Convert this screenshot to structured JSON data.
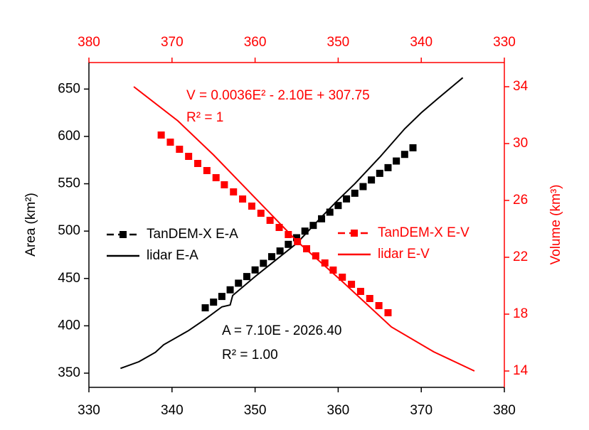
{
  "chart_data": {
    "type": "line",
    "xlim": [
      330,
      380
    ],
    "xticks": [
      330,
      340,
      350,
      360,
      370,
      380
    ],
    "x2lim": [
      380,
      330
    ],
    "x2ticks": [
      380,
      370,
      360,
      350,
      340,
      330
    ],
    "ylim": [
      335,
      678
    ],
    "yticks": [
      350,
      400,
      450,
      500,
      550,
      600,
      650
    ],
    "y2lim": [
      12.85,
      35.7
    ],
    "y2ticks": [
      14,
      18,
      22,
      26,
      30,
      34
    ],
    "ylabel": "Area (km²)",
    "y2label": "Volume (km³)",
    "annotations": [
      {
        "text": "V = 0.0036E² - 2.10E + 307.75",
        "color": "#ff0000"
      },
      {
        "text": "R² = 1",
        "color": "#ff0000"
      },
      {
        "text": "A = 7.10E - 2026.40",
        "color": "#000000"
      },
      {
        "text": "R² = 1.00",
        "color": "#000000"
      }
    ],
    "series": [
      {
        "name": "TanDEM-X E-A",
        "color": "#000000",
        "marker": "square",
        "dashed": true,
        "axis": "y",
        "x": [
          344,
          345,
          346,
          347,
          348,
          349,
          350,
          351,
          352,
          353,
          354,
          355,
          356,
          357,
          358,
          359,
          360,
          361,
          362,
          363,
          364,
          365,
          366,
          367,
          368,
          369
        ],
        "values": [
          419,
          425,
          431,
          438,
          445,
          452,
          459,
          466,
          473,
          479,
          486,
          493,
          500,
          506,
          513,
          520,
          527,
          534,
          540,
          547,
          554,
          561,
          567,
          574,
          581,
          588
        ]
      },
      {
        "name": "lidar E-A",
        "color": "#000000",
        "marker": "none",
        "dashed": false,
        "axis": "y",
        "x": [
          333.8,
          336,
          338,
          339,
          342,
          344,
          346,
          347,
          347.3,
          350,
          352,
          355,
          358,
          360,
          362,
          365,
          368,
          370,
          372,
          375
        ],
        "values": [
          355,
          362,
          372,
          380,
          395,
          407,
          420,
          422,
          432,
          452,
          466,
          487,
          515,
          533,
          550,
          578,
          608,
          625,
          640,
          662
        ]
      },
      {
        "name": "TanDEM-X E-V",
        "color": "#ff0000",
        "marker": "square",
        "dashed": true,
        "axis": "y2",
        "x": [
          371.3,
          370.2,
          369.1,
          368.0,
          366.9,
          365.8,
          364.7,
          363.7,
          362.6,
          361.5,
          360.4,
          359.3,
          358.2,
          357.1,
          356.0,
          354.9,
          353.8,
          352.7,
          351.6,
          350.6,
          349.5,
          348.4,
          347.3,
          346.2,
          345.1,
          344.0
        ],
        "values": [
          30.6,
          30.1,
          29.6,
          29.1,
          28.6,
          28.1,
          27.6,
          27.1,
          26.6,
          26.1,
          25.6,
          25.1,
          24.6,
          24.1,
          23.6,
          23.1,
          22.6,
          22.1,
          21.6,
          21.1,
          20.6,
          20.1,
          19.6,
          19.1,
          18.6,
          18.1
        ]
      },
      {
        "name": "lidar E-V",
        "color": "#ff0000",
        "marker": "none",
        "dashed": false,
        "axis": "y2",
        "x": [
          374.6,
          369.3,
          365.0,
          354.9,
          349.6,
          343.6,
          338.5,
          333.6
        ],
        "values": [
          34.0,
          31.6,
          29.2,
          23.1,
          20.35,
          17.1,
          15.35,
          14.0
        ]
      }
    ]
  }
}
